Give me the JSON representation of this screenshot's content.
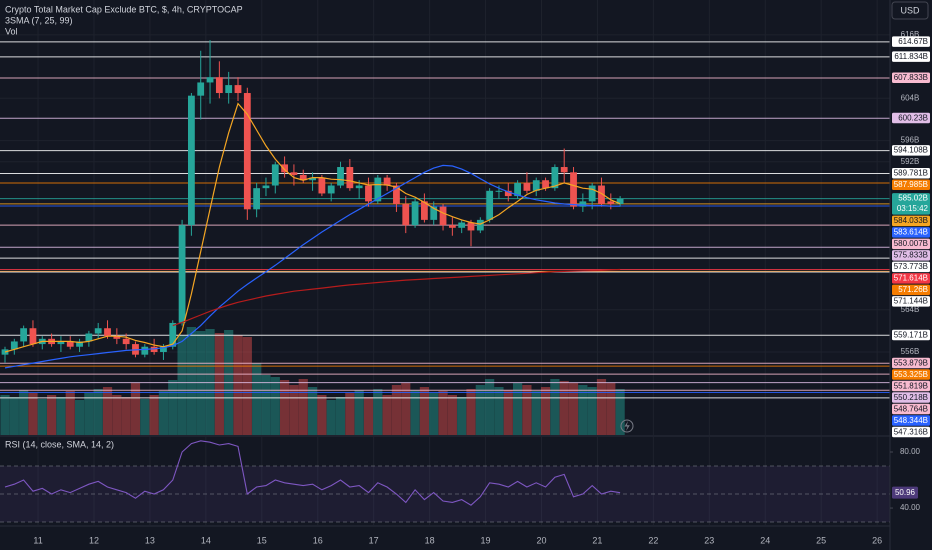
{
  "header": {
    "title": "Crypto Total Market Cap Exclude BTC, $, 4h, CRYPTOCAP",
    "indicator": "3SMA (7, 25, 99)",
    "volume": "Vol",
    "currency": "USD"
  },
  "chart_data": [
    {
      "type": "candlestick",
      "xlim": [
        10.32,
        26.23
      ],
      "xticks": [
        11,
        12,
        13,
        14,
        15,
        16,
        17,
        18,
        19,
        20,
        21,
        22,
        23,
        24,
        25,
        26
      ],
      "ylim": [
        540.3,
        622.6
      ],
      "yticks": [
        {
          "value": 616,
          "label": "616B"
        },
        {
          "value": 604,
          "label": "604B"
        },
        {
          "value": 596,
          "label": "596B"
        },
        {
          "value": 592,
          "label": "592B"
        },
        {
          "value": 564,
          "label": "564B"
        },
        {
          "value": 556,
          "label": "556B"
        }
      ],
      "grid": true,
      "up_color": "#26a69a",
      "down_color": "#ef5350",
      "open": [
        555.5,
        556.5,
        558,
        560.5,
        557.5,
        558.5,
        557.5,
        558,
        557,
        558,
        559.5,
        560.5,
        559,
        558.5,
        557.5,
        555.5,
        557,
        556,
        557,
        561.5,
        580,
        604.5,
        607,
        608,
        605,
        606.5,
        605,
        583,
        587,
        587.5,
        591.5,
        590,
        589.5,
        588.5,
        589,
        586,
        587.5,
        591,
        587,
        587.5,
        584.5,
        589,
        587.5,
        584,
        580,
        584.5,
        581,
        583.5,
        580,
        579.5,
        580.5,
        579,
        581,
        586.5,
        586.5,
        585.5,
        588,
        586.5,
        588.5,
        587,
        591,
        590,
        583.5,
        584.5,
        587.5,
        584.5,
        584
      ],
      "high": [
        557,
        558.5,
        561,
        562,
        559,
        559.5,
        559,
        559,
        558.5,
        560,
        561.5,
        562,
        560.5,
        559.5,
        558,
        557.5,
        558.5,
        557.5,
        562,
        581,
        605,
        613,
        615,
        611,
        609,
        608,
        606,
        588,
        589,
        592,
        593,
        591.5,
        590.5,
        590,
        589.5,
        588,
        592,
        592.5,
        588.5,
        589,
        589.5,
        589.5,
        588,
        585.5,
        585,
        586,
        584.5,
        584,
        581.5,
        581,
        581,
        581.5,
        587,
        587.5,
        588,
        588.5,
        590,
        589,
        589,
        591.5,
        594.5,
        591,
        586,
        588,
        589,
        586,
        585.5
      ],
      "low": [
        554,
        555.5,
        557,
        557,
        556.5,
        557,
        556,
        556.5,
        556,
        557,
        558.5,
        558.5,
        557.5,
        556.5,
        555,
        555,
        555.5,
        554.5,
        556.5,
        561,
        578,
        600,
        603,
        604,
        603,
        603.5,
        581,
        581.5,
        585.5,
        586,
        589,
        587.5,
        588,
        586.5,
        585.5,
        584.5,
        587,
        586.5,
        585,
        583.5,
        584,
        586.5,
        582.5,
        578.5,
        579.5,
        580.5,
        580,
        579,
        578,
        578.5,
        576,
        578.5,
        580.5,
        585,
        584.5,
        585,
        586,
        585.5,
        586.5,
        586.5,
        588,
        583,
        582.5,
        583,
        583.5,
        583,
        583.5
      ],
      "close": [
        556.5,
        558,
        560.5,
        557.5,
        558.5,
        557.5,
        558,
        557,
        558,
        559.5,
        560.5,
        559,
        558.5,
        557.5,
        555.5,
        557,
        556,
        557,
        561.5,
        580,
        604.5,
        607,
        608,
        605,
        606.5,
        605,
        583,
        587,
        587.5,
        591.5,
        590,
        589.5,
        588.5,
        589,
        586,
        587.5,
        591,
        587,
        587.5,
        584.5,
        589,
        587.5,
        584,
        580,
        584.5,
        581,
        583.5,
        580,
        579.5,
        580.5,
        579,
        581,
        586.5,
        586.5,
        585.5,
        588,
        586.5,
        588.5,
        587,
        591,
        590,
        583.5,
        584.5,
        587.5,
        584,
        584,
        585.02
      ],
      "volume": [
        40,
        38,
        45,
        42,
        36,
        40,
        38,
        44,
        35,
        42,
        46,
        48,
        40,
        38,
        52,
        36,
        40,
        44,
        55,
        100,
        108,
        104,
        106,
        102,
        105,
        100,
        98,
        72,
        60,
        58,
        55,
        50,
        56,
        48,
        40,
        35,
        38,
        42,
        45,
        38,
        46,
        40,
        50,
        52,
        45,
        48,
        42,
        44,
        40,
        38,
        46,
        50,
        56,
        48,
        45,
        52,
        50,
        44,
        48,
        56,
        54,
        52,
        50,
        48,
        56,
        52,
        46
      ],
      "series": [
        {
          "color": "#f5a623",
          "values": [
            556,
            556.5,
            557,
            557.5,
            558,
            558,
            558,
            558,
            557.8,
            558,
            558.5,
            559,
            559,
            558.8,
            558.2,
            557.8,
            557.3,
            557,
            557.5,
            560,
            567,
            575,
            583,
            591,
            597.5,
            603,
            601,
            598,
            595,
            592.5,
            590.5,
            589,
            588.5,
            589,
            589,
            588.7,
            588.6,
            588.4,
            588,
            587.6,
            587.7,
            587.6,
            587.2,
            586,
            585.3,
            584.3,
            583.2,
            582.3,
            581.6,
            581,
            580.5,
            580.2,
            581,
            582,
            583.3,
            584.5,
            585.8,
            586.6,
            587,
            587.4,
            588,
            587.5,
            587,
            586.8,
            586,
            584.8,
            584.033
          ]
        },
        {
          "color": "#2962ff",
          "values": [
            553,
            553.3,
            553.6,
            553.9,
            554.2,
            554.5,
            554.8,
            555.1,
            555.3,
            555.5,
            555.7,
            555.9,
            556.1,
            556.3,
            556.4,
            556.5,
            556.6,
            556.8,
            557.2,
            558,
            559.5,
            561,
            562.8,
            564.5,
            566,
            567.5,
            568.8,
            570,
            571.2,
            572.4,
            573.7,
            575,
            576.3,
            577.5,
            578.7,
            579.8,
            580.9,
            582,
            583,
            584,
            585,
            586,
            587,
            588,
            589,
            590,
            590.8,
            591.3,
            591.2,
            590.6,
            589.8,
            588.8,
            587.8,
            587,
            586.3,
            585.7,
            585.2,
            584.8,
            584.5,
            584.2,
            584,
            583.9,
            583.8,
            583.7,
            583.7,
            583.6,
            583.614
          ]
        },
        {
          "color": "#b71c1c",
          "values": [
            null,
            null,
            null,
            null,
            null,
            null,
            null,
            null,
            null,
            null,
            null,
            null,
            null,
            null,
            null,
            null,
            null,
            null,
            561,
            561.6,
            562.3,
            563,
            563.7,
            564.3,
            564.9,
            565.4,
            565.8,
            566.2,
            566.6,
            566.9,
            567.2,
            567.5,
            567.7,
            567.9,
            568.1,
            568.3,
            568.5,
            568.7,
            568.85,
            569,
            569.15,
            569.3,
            569.45,
            569.6,
            569.7,
            569.8,
            569.9,
            570,
            570.1,
            570.2,
            570.3,
            570.4,
            570.5,
            570.6,
            570.7,
            570.8,
            570.9,
            571,
            571.1,
            571.2,
            571.25,
            571.3,
            571.35,
            571.4,
            571.45,
            571.55,
            571.614
          ]
        }
      ],
      "price_lines": [
        {
          "value": 614.67,
          "label": "614.67B",
          "color": "#ffffff"
        },
        {
          "value": 611.834,
          "label": "611.834B",
          "color": "#ffffff"
        },
        {
          "value": 607.833,
          "label": "607.833B",
          "color": "#f8bbd0"
        },
        {
          "value": 600.23,
          "label": "600.23B",
          "color": "#e1bee7"
        },
        {
          "value": 594.108,
          "label": "594.108B",
          "color": "#ffffff"
        },
        {
          "value": 589.781,
          "label": "589.781B",
          "color": "#ffffff"
        },
        {
          "value": 587.985,
          "label": "587.985B",
          "color": "#f57c00"
        },
        {
          "value": 585.02,
          "label": "585.02B",
          "color": "#26a69a",
          "countdown": "03:15:42"
        },
        {
          "value": 584.033,
          "label": "584.033B",
          "color": "#f5a623"
        },
        {
          "value": 583.614,
          "label": "583.614B",
          "color": "#2962ff"
        },
        {
          "value": 580.007,
          "label": "580.007B",
          "color": "#f8bbd0"
        },
        {
          "value": 575.833,
          "label": "575.833B",
          "color": "#e1bee7"
        },
        {
          "value": 573.773,
          "label": "573.773B",
          "color": "#ffffff"
        },
        {
          "value": 571.614,
          "label": "571.614B",
          "color": "#f23645"
        },
        {
          "value": 571.26,
          "label": "571.26B",
          "color": "#f57c00"
        },
        {
          "value": 571.144,
          "label": "571.144B",
          "color": "#ffffff"
        },
        {
          "value": 559.171,
          "label": "559.171B",
          "color": "#ffffff"
        },
        {
          "value": 553.879,
          "label": "553.879B",
          "color": "#f8bbd0"
        },
        {
          "value": 553.325,
          "label": "553.325B",
          "color": "#f57c00"
        },
        {
          "value": 551.819,
          "label": "551.819B",
          "color": "#f8bbd0"
        },
        {
          "value": 550.218,
          "label": "550.218B",
          "color": "#e1bee7"
        },
        {
          "value": 548.764,
          "label": "548.764B",
          "color": "#f8bbd0"
        },
        {
          "value": 548.344,
          "label": "548.344B",
          "color": "#2962ff"
        },
        {
          "value": 547.316,
          "label": "547.316B",
          "color": "#ffffff"
        }
      ]
    },
    {
      "type": "line",
      "title": "RSI (14, close, SMA, 14, 2)",
      "color": "#7e57c2",
      "ylim": [
        27.9,
        90.7
      ],
      "yticks": [
        {
          "value": 80,
          "label": "80.00"
        },
        {
          "value": 40,
          "label": "40.00"
        }
      ],
      "band_lines": [
        70,
        50,
        30
      ],
      "values": [
        55,
        57,
        60,
        52,
        54,
        50,
        53,
        51,
        54,
        57,
        59,
        55,
        53,
        51,
        47,
        52,
        50,
        53,
        60,
        80,
        86,
        88,
        87,
        85,
        86,
        84,
        50,
        55,
        56,
        60,
        58,
        57,
        56,
        57,
        53,
        56,
        60,
        55,
        56,
        51,
        58,
        55,
        50,
        44,
        53,
        46,
        51,
        45,
        44,
        46,
        42,
        48,
        58,
        57,
        55,
        59,
        55,
        58,
        55,
        62,
        64,
        48,
        50,
        56,
        50,
        52,
        50.96
      ],
      "value_labels": {
        "last": "50.96"
      }
    }
  ]
}
